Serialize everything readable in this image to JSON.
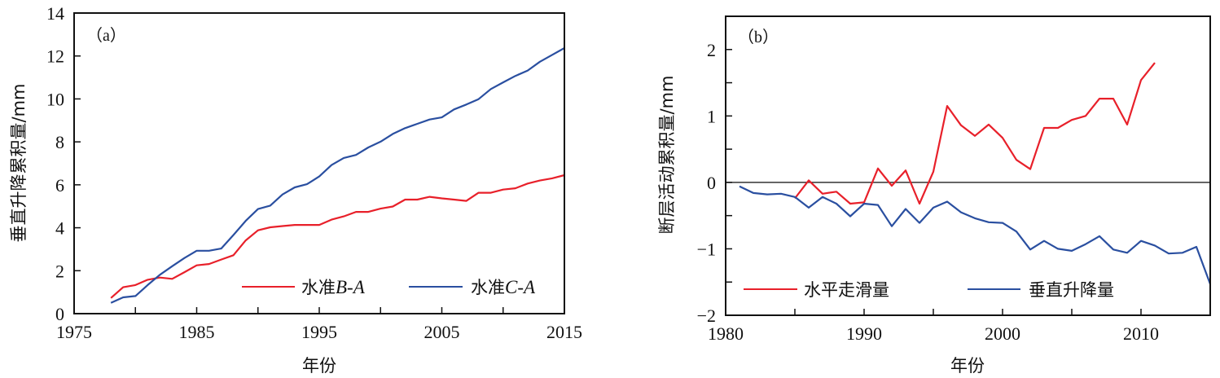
{
  "chart_data": [
    {
      "type": "line",
      "panel_label": "（a）",
      "title": "",
      "xlabel": "年份",
      "ylabel": "垂直升降累积量/mm",
      "xlim": [
        1975,
        2015
      ],
      "ylim": [
        0,
        14
      ],
      "xticks": [
        1975,
        1980,
        1985,
        1990,
        1995,
        2000,
        2005,
        2010,
        2015
      ],
      "xtick_labels": [
        "1975",
        "",
        "1985",
        "",
        "1995",
        "",
        "2005",
        "",
        "2015"
      ],
      "yticks": [
        0,
        2,
        4,
        6,
        8,
        10,
        12,
        14
      ],
      "ytick_labels": [
        "0",
        "2",
        "4",
        "6",
        "8",
        "10",
        "12",
        "14"
      ],
      "grid": false,
      "legend_position": "bottom-right",
      "x": [
        1978,
        1979,
        1980,
        1981,
        1982,
        1983,
        1984,
        1985,
        1986,
        1987,
        1988,
        1989,
        1990,
        1991,
        1992,
        1993,
        1994,
        1995,
        1996,
        1997,
        1998,
        1999,
        2000,
        2001,
        2002,
        2003,
        2004,
        2005,
        2006,
        2007,
        2008,
        2009,
        2010,
        2011,
        2012,
        2013,
        2014,
        2015
      ],
      "series": [
        {
          "name": "水准B-A",
          "legend_prefix": "水准",
          "legend_italic": "B-A",
          "color": "#e8202a",
          "values": [
            0.73,
            1.23,
            1.33,
            1.58,
            1.68,
            1.62,
            1.93,
            2.25,
            2.31,
            2.52,
            2.72,
            3.41,
            3.88,
            4.02,
            4.08,
            4.13,
            4.13,
            4.13,
            4.38,
            4.53,
            4.74,
            4.74,
            4.89,
            4.99,
            5.31,
            5.31,
            5.44,
            5.37,
            5.31,
            5.25,
            5.63,
            5.63,
            5.78,
            5.84,
            6.06,
            6.2,
            6.3,
            6.45
          ]
        },
        {
          "name": "水准C-A",
          "legend_prefix": "水准",
          "legend_italic": "C-A",
          "color": "#2a4fa0",
          "values": [
            0.5,
            0.76,
            0.82,
            1.33,
            1.81,
            2.21,
            2.59,
            2.93,
            2.93,
            3.03,
            3.66,
            4.32,
            4.87,
            5.03,
            5.55,
            5.88,
            6.03,
            6.39,
            6.92,
            7.25,
            7.39,
            7.74,
            8.01,
            8.37,
            8.64,
            8.84,
            9.04,
            9.14,
            9.51,
            9.74,
            9.99,
            10.46,
            10.77,
            11.07,
            11.32,
            11.73,
            12.05,
            12.37
          ]
        }
      ]
    },
    {
      "type": "line",
      "panel_label": "（b）",
      "title": "",
      "xlabel": "年份",
      "ylabel": "断层活动累积量/mm",
      "xlim": [
        1980,
        2015
      ],
      "ylim": [
        -2,
        2.5
      ],
      "xticks": [
        1980,
        1985,
        1990,
        1995,
        2000,
        2005,
        2010,
        2015
      ],
      "xtick_labels": [
        "1980",
        "",
        "1990",
        "",
        "2000",
        "",
        "2010",
        ""
      ],
      "yticks": [
        -2,
        -1.5,
        -1,
        -0.5,
        0,
        0.5,
        1,
        1.5,
        2
      ],
      "ytick_labels": [
        "−2",
        "",
        "−1",
        "",
        "0",
        "",
        "1",
        "",
        "2"
      ],
      "zero_line": true,
      "grid": false,
      "legend_position": "bottom",
      "series": [
        {
          "name": "水平走滑量",
          "color": "#e8202a",
          "x": [
            1985,
            1986,
            1987,
            1988,
            1989,
            1990,
            1991,
            1992,
            1993,
            1994,
            1995,
            1996,
            1997,
            1998,
            1999,
            2000,
            2001,
            2002,
            2003,
            2004,
            2005,
            2006,
            2007,
            2008,
            2009,
            2010,
            2011
          ],
          "values": [
            -0.24,
            0.03,
            -0.17,
            -0.14,
            -0.32,
            -0.3,
            0.21,
            -0.05,
            0.18,
            -0.32,
            0.16,
            1.15,
            0.86,
            0.7,
            0.87,
            0.67,
            0.34,
            0.2,
            0.82,
            0.82,
            0.94,
            1.0,
            1.26,
            1.26,
            0.87,
            1.54,
            1.8
          ]
        },
        {
          "name": "垂直升降量",
          "color": "#2a4fa0",
          "x": [
            1981,
            1982,
            1983,
            1984,
            1985,
            1986,
            1987,
            1988,
            1989,
            1990,
            1991,
            1992,
            1993,
            1994,
            1995,
            1996,
            1997,
            1998,
            1999,
            2000,
            2001,
            2002,
            2003,
            2004,
            2005,
            2006,
            2007,
            2008,
            2009,
            2010,
            2011,
            2012,
            2013,
            2014,
            2015
          ],
          "values": [
            -0.06,
            -0.16,
            -0.18,
            -0.17,
            -0.22,
            -0.38,
            -0.22,
            -0.32,
            -0.51,
            -0.32,
            -0.34,
            -0.66,
            -0.4,
            -0.61,
            -0.38,
            -0.29,
            -0.45,
            -0.54,
            -0.6,
            -0.61,
            -0.74,
            -1.01,
            -0.88,
            -1.0,
            -1.03,
            -0.93,
            -0.81,
            -1.01,
            -1.06,
            -0.88,
            -0.95,
            -1.07,
            -1.06,
            -0.97,
            -1.53
          ]
        }
      ]
    }
  ]
}
